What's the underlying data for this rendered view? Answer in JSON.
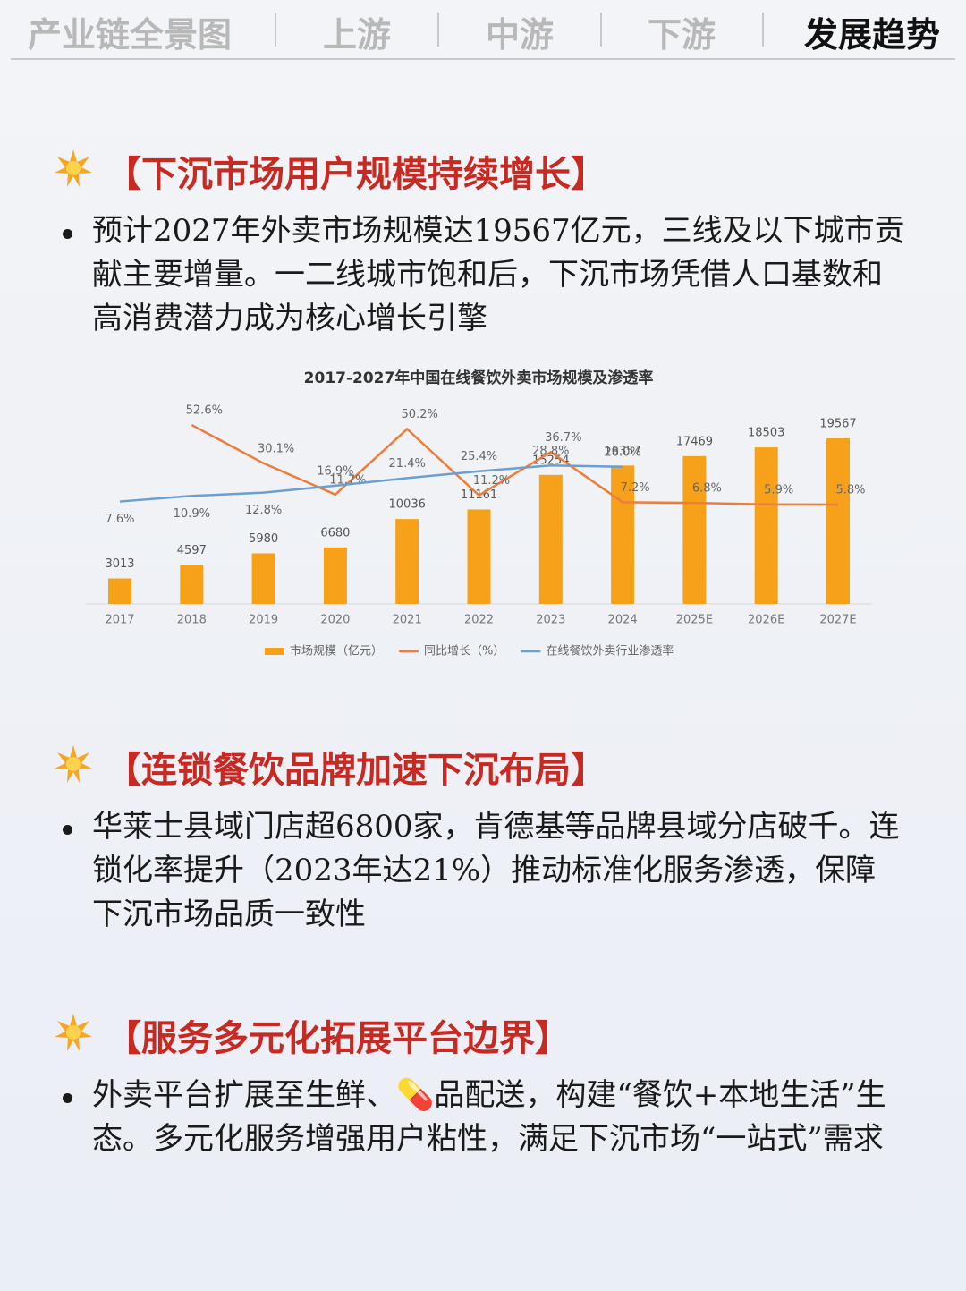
{
  "tabs": {
    "items": [
      "产业链全景图",
      "上游",
      "中游",
      "下游",
      "发展趋势"
    ],
    "active": 4
  },
  "sections": [
    {
      "heading": "【下沉市场用户规模持续增长】",
      "bullet": "预计2027年外卖市场规模达19567亿元，三线及以下城市贡献主要增量。一二线城市饱和后，下沉市场凭借人口基数和高消费潜力成为核心增长引擎"
    },
    {
      "heading": "【连锁餐饮品牌加速下沉布局】",
      "bullet": "华莱士县域门店超6800家，肯德基等品牌县域分店破千。连锁化率提升（2023年达21%）推动标准化服务渗透，保障下沉市场品质一致性"
    },
    {
      "heading": "【服务多元化拓展平台边界】",
      "bullet": "外卖平台扩展至生鲜、💊品配送，构建“餐饮+本地生活”生态。多元化服务增强用户粘性，满足下沉市场“一站式”需求"
    }
  ],
  "chart_data": {
    "type": "bar",
    "title": "2017-2027年中国在线餐饮外卖市场规模及渗透率",
    "categories": [
      "2017",
      "2018",
      "2019",
      "2020",
      "2021",
      "2022",
      "2023",
      "2024",
      "2025E",
      "2026E",
      "2027E"
    ],
    "series": [
      {
        "name": "市场规模（亿元）",
        "type": "bar",
        "color": "#f7a11a",
        "values": [
          3013,
          4597,
          5980,
          6680,
          10036,
          11161,
          15254,
          16357,
          17469,
          18503,
          19567
        ]
      },
      {
        "name": "同比增长（%）",
        "type": "line",
        "color": "#ec7d3a",
        "values": [
          null,
          52.6,
          30.1,
          11.7,
          50.2,
          11.2,
          36.7,
          7.2,
          6.8,
          5.9,
          5.8
        ],
        "value_labels": [
          null,
          "52.6%",
          "30.1%",
          "11.7%",
          "50.2%",
          "11.2%",
          "36.7%",
          "7.2%",
          "6.8%",
          "5.9%",
          "5.8%"
        ]
      },
      {
        "name": "在线餐饮外卖行业渗透率",
        "type": "line",
        "color": "#6a9fcf",
        "values": [
          7.6,
          10.9,
          12.8,
          16.9,
          21.4,
          25.4,
          28.8,
          28.0,
          null,
          null,
          null
        ],
        "value_labels": [
          "7.6%",
          "10.9%",
          "12.8%",
          "16.9%",
          "21.4%",
          "25.4%",
          "28.8%",
          "28.0%",
          null,
          null,
          null
        ]
      }
    ]
  }
}
